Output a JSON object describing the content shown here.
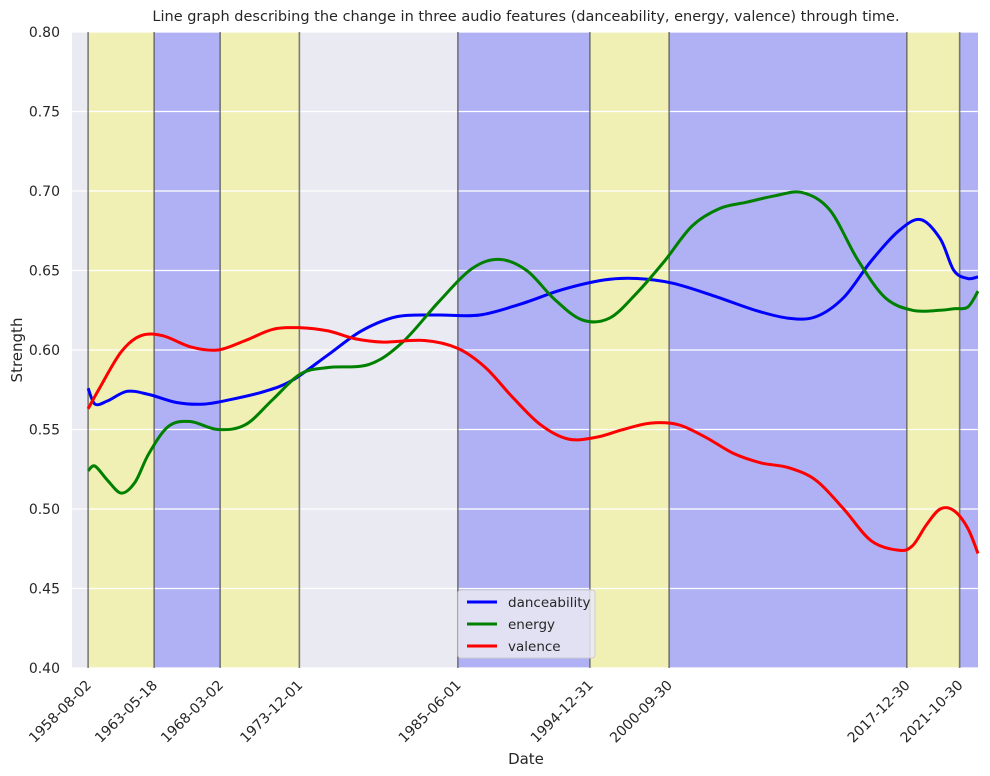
{
  "chart_data": {
    "type": "line",
    "title": "Line graph describing the change in three audio features (danceability, energy, valence) through time.",
    "xlabel": "Date",
    "ylabel": "Strength",
    "ylim": [
      0.4,
      0.8
    ],
    "xlim": [
      "1957-06-01",
      "2023-03-01"
    ],
    "y_ticks": [
      "0.40",
      "0.45",
      "0.50",
      "0.55",
      "0.60",
      "0.65",
      "0.70",
      "0.75",
      "0.80"
    ],
    "x_ticks": [
      "1958-08-02",
      "1963-05-18",
      "1968-03-02",
      "1973-12-01",
      "1985-06-01",
      "1994-12-31",
      "2000-09-30",
      "2017-12-30",
      "2021-10-30"
    ],
    "grid": true,
    "legend_position": "bottom-center",
    "background": "#eaeaf2",
    "bands": [
      {
        "start": "1958-08-02",
        "end": "1963-05-18",
        "color": "#f0f0b4"
      },
      {
        "start": "1963-05-18",
        "end": "1968-03-02",
        "color": "#b0b0f4"
      },
      {
        "start": "1968-03-02",
        "end": "1973-12-01",
        "color": "#f0f0b4"
      },
      {
        "start": "1985-06-01",
        "end": "1994-12-31",
        "color": "#b0b0f4"
      },
      {
        "start": "1994-12-31",
        "end": "2000-09-30",
        "color": "#f0f0b4"
      },
      {
        "start": "2000-09-30",
        "end": "2017-12-30",
        "color": "#b0b0f4"
      },
      {
        "start": "2017-12-30",
        "end": "2021-10-30",
        "color": "#f0f0b4"
      },
      {
        "start": "2021-10-30",
        "end": "2023-05-01",
        "color": "#b0b0f4"
      }
    ],
    "series": [
      {
        "name": "danceability",
        "color": "#0000ff",
        "points": [
          [
            "1958-08-02",
            0.576
          ],
          [
            "1959-02-01",
            0.566
          ],
          [
            "1960-01-01",
            0.568
          ],
          [
            "1961-06-01",
            0.574
          ],
          [
            "1963-01-01",
            0.572
          ],
          [
            "1965-01-01",
            0.567
          ],
          [
            "1967-01-01",
            0.566
          ],
          [
            "1969-01-01",
            0.569
          ],
          [
            "1971-06-01",
            0.574
          ],
          [
            "1973-06-01",
            0.581
          ],
          [
            "1976-01-01",
            0.597
          ],
          [
            "1978-06-01",
            0.612
          ],
          [
            "1981-01-01",
            0.621
          ],
          [
            "1984-01-01",
            0.622
          ],
          [
            "1987-01-01",
            0.622
          ],
          [
            "1990-01-01",
            0.629
          ],
          [
            "1993-01-01",
            0.638
          ],
          [
            "1996-01-01",
            0.644
          ],
          [
            "1998-06-01",
            0.645
          ],
          [
            "2001-01-01",
            0.642
          ],
          [
            "2004-01-01",
            0.634
          ],
          [
            "2007-01-01",
            0.625
          ],
          [
            "2009-06-01",
            0.62
          ],
          [
            "2011-06-01",
            0.621
          ],
          [
            "2013-06-01",
            0.633
          ],
          [
            "2015-06-01",
            0.656
          ],
          [
            "2017-06-01",
            0.675
          ],
          [
            "2019-01-01",
            0.682
          ],
          [
            "2020-06-01",
            0.67
          ],
          [
            "2021-06-01",
            0.65
          ],
          [
            "2022-06-01",
            0.645
          ],
          [
            "2023-03-01",
            0.646
          ]
        ]
      },
      {
        "name": "energy",
        "color": "#008000",
        "points": [
          [
            "1958-08-02",
            0.524
          ],
          [
            "1959-02-01",
            0.527
          ],
          [
            "1960-01-01",
            0.518
          ],
          [
            "1961-01-01",
            0.51
          ],
          [
            "1962-01-01",
            0.517
          ],
          [
            "1963-01-01",
            0.535
          ],
          [
            "1964-06-01",
            0.552
          ],
          [
            "1966-01-01",
            0.555
          ],
          [
            "1968-01-01",
            0.55
          ],
          [
            "1970-01-01",
            0.553
          ],
          [
            "1972-01-01",
            0.569
          ],
          [
            "1974-01-01",
            0.585
          ],
          [
            "1976-01-01",
            0.589
          ],
          [
            "1979-01-01",
            0.591
          ],
          [
            "1981-06-01",
            0.605
          ],
          [
            "1984-01-01",
            0.63
          ],
          [
            "1986-06-01",
            0.651
          ],
          [
            "1988-06-01",
            0.657
          ],
          [
            "1990-06-01",
            0.65
          ],
          [
            "1992-06-01",
            0.632
          ],
          [
            "1994-06-01",
            0.619
          ],
          [
            "1996-06-01",
            0.62
          ],
          [
            "1998-06-01",
            0.636
          ],
          [
            "2000-06-01",
            0.656
          ],
          [
            "2002-06-01",
            0.678
          ],
          [
            "2004-06-01",
            0.689
          ],
          [
            "2006-06-01",
            0.693
          ],
          [
            "2008-06-01",
            0.697
          ],
          [
            "2010-06-01",
            0.699
          ],
          [
            "2012-06-01",
            0.688
          ],
          [
            "2014-06-01",
            0.657
          ],
          [
            "2016-06-01",
            0.633
          ],
          [
            "2018-06-01",
            0.625
          ],
          [
            "2020-06-01",
            0.625
          ],
          [
            "2021-06-01",
            0.626
          ],
          [
            "2022-06-01",
            0.627
          ],
          [
            "2023-03-01",
            0.637
          ]
        ]
      },
      {
        "name": "valence",
        "color": "#ff0000",
        "points": [
          [
            "1958-08-02",
            0.563
          ],
          [
            "1959-06-01",
            0.576
          ],
          [
            "1961-01-01",
            0.599
          ],
          [
            "1962-06-01",
            0.609
          ],
          [
            "1964-01-01",
            0.609
          ],
          [
            "1966-01-01",
            0.602
          ],
          [
            "1968-01-01",
            0.6
          ],
          [
            "1970-01-01",
            0.606
          ],
          [
            "1972-01-01",
            0.613
          ],
          [
            "1974-01-01",
            0.614
          ],
          [
            "1976-01-01",
            0.612
          ],
          [
            "1978-01-01",
            0.607
          ],
          [
            "1980-01-01",
            0.605
          ],
          [
            "1983-01-01",
            0.606
          ],
          [
            "1985-06-01",
            0.601
          ],
          [
            "1987-06-01",
            0.589
          ],
          [
            "1989-06-01",
            0.57
          ],
          [
            "1991-06-01",
            0.553
          ],
          [
            "1993-06-01",
            0.544
          ],
          [
            "1995-06-01",
            0.545
          ],
          [
            "1997-06-01",
            0.55
          ],
          [
            "1999-06-01",
            0.554
          ],
          [
            "2001-06-01",
            0.553
          ],
          [
            "2003-06-01",
            0.545
          ],
          [
            "2005-06-01",
            0.535
          ],
          [
            "2007-06-01",
            0.529
          ],
          [
            "2009-06-01",
            0.526
          ],
          [
            "2011-06-01",
            0.518
          ],
          [
            "2013-06-01",
            0.5
          ],
          [
            "2015-06-01",
            0.48
          ],
          [
            "2017-06-01",
            0.474
          ],
          [
            "2018-06-01",
            0.477
          ],
          [
            "2019-06-01",
            0.49
          ],
          [
            "2020-06-01",
            0.5
          ],
          [
            "2021-06-01",
            0.499
          ],
          [
            "2022-06-01",
            0.488
          ],
          [
            "2023-03-01",
            0.472
          ]
        ]
      }
    ]
  }
}
